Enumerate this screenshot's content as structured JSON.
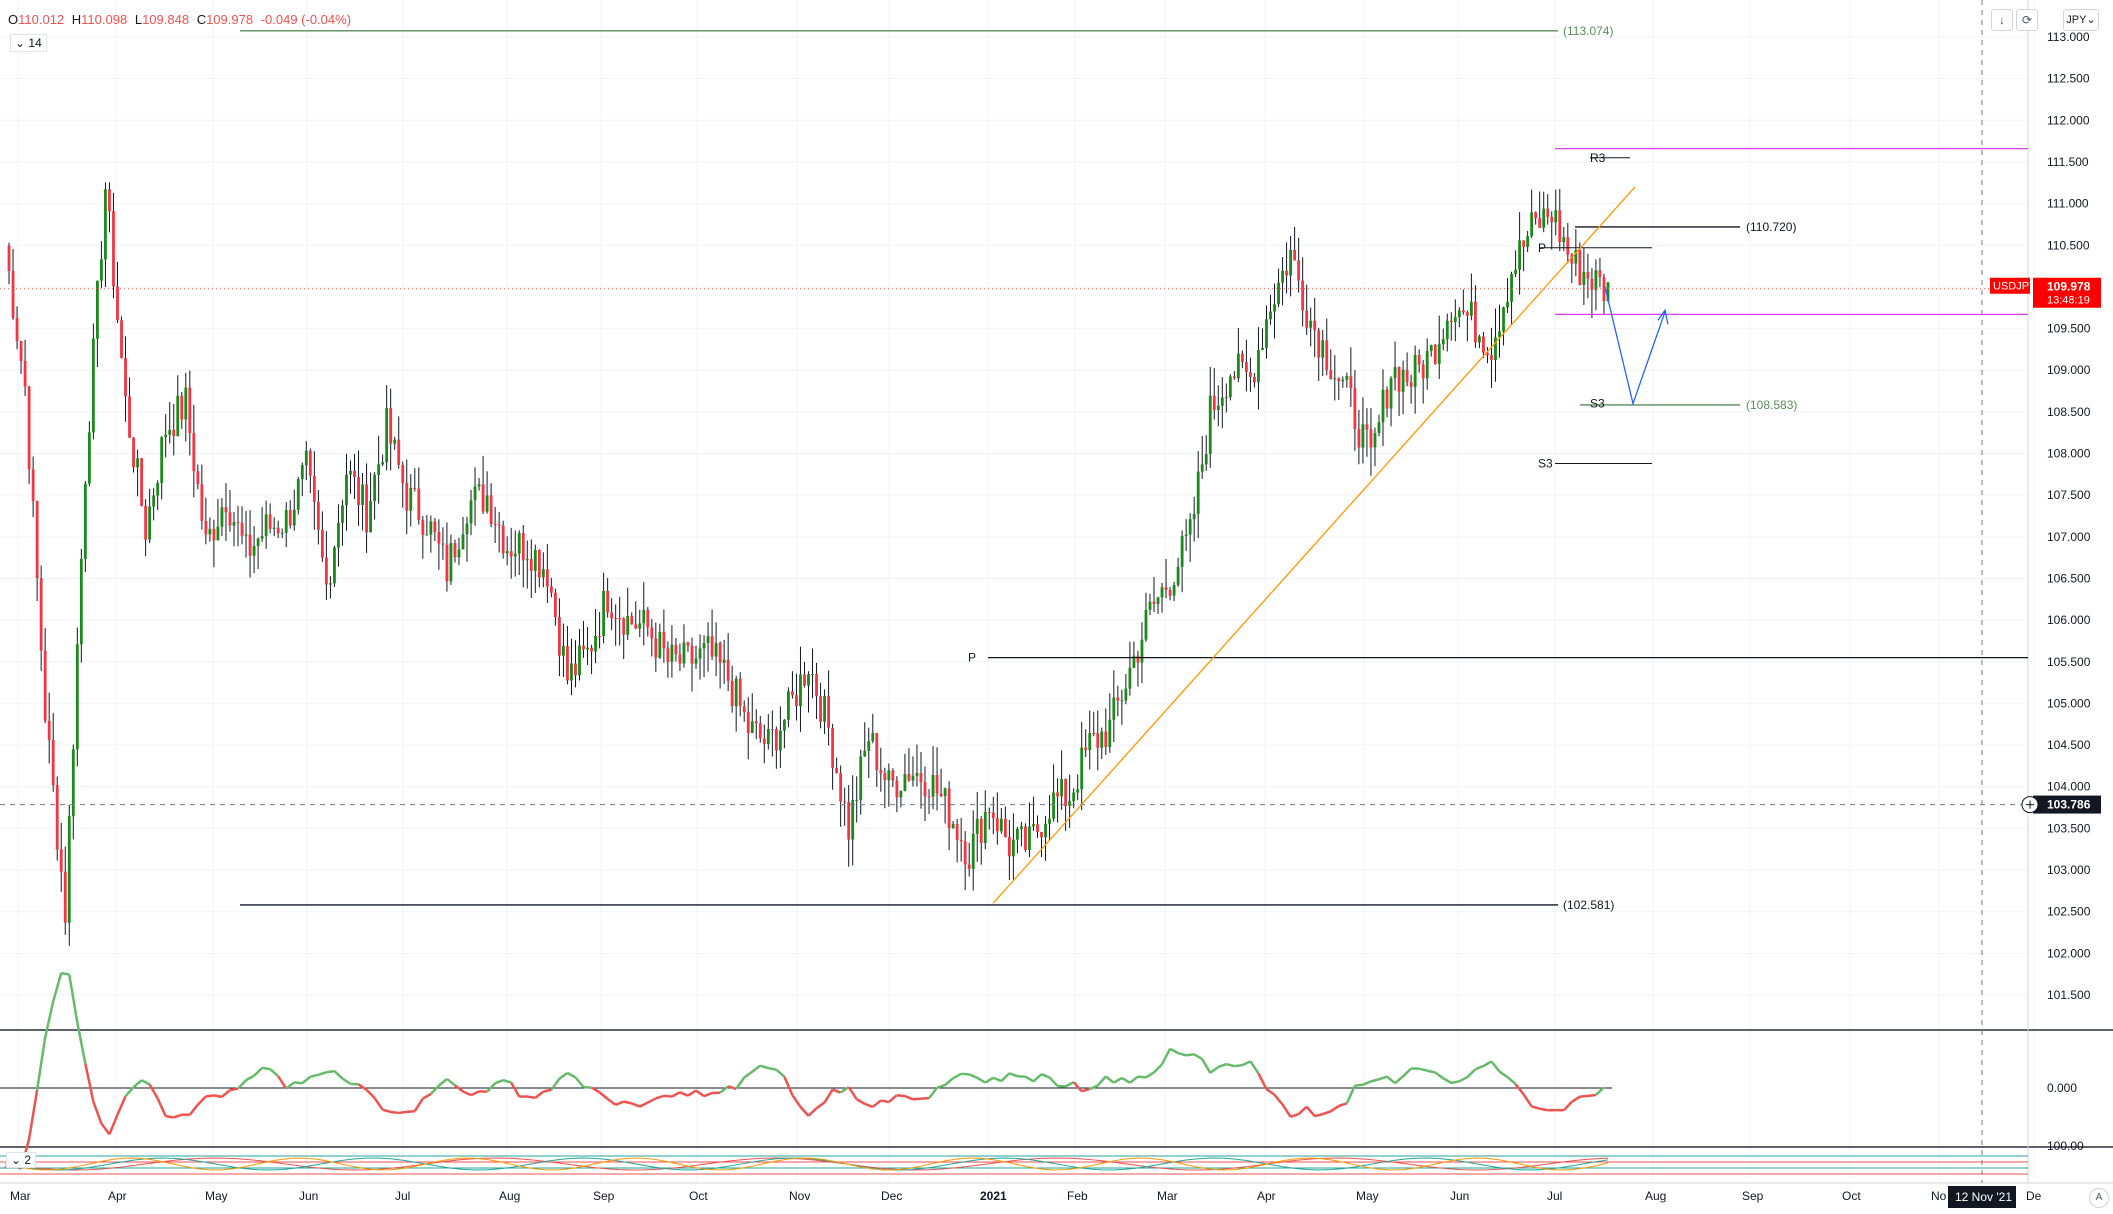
{
  "ohlc": {
    "o_label": "O",
    "o": "110.012",
    "h_label": "H",
    "h": "110.098",
    "l_label": "L",
    "l": "109.848",
    "c_label": "C",
    "c": "109.978",
    "change": "-0.049 (-0.04%)"
  },
  "toolbar": {
    "indicator_length": "14",
    "indicator2_length": "2",
    "currency": "JPY",
    "arrow_down_icon": "arrow-down-icon",
    "refresh_icon": "refresh-icon",
    "auto_scale_label": "A"
  },
  "colors": {
    "up": "#26a69a",
    "candle_up": "#1b8a1b",
    "candle_down": "#f23645",
    "price_badge": "#ff0000",
    "pivot_magenta": "#e040fb",
    "trendline": "#ff9800",
    "arrow": "#2962ff",
    "osc_up": "#66bb6a",
    "osc_down": "#ef5350"
  },
  "chart_data": {
    "type": "candlestick",
    "symbol": "USDJPY",
    "last_price": "109.978",
    "countdown": "13:48:19",
    "crosshair_price": "103.786",
    "crosshair_date": "12 Nov '21",
    "ylim": [
      101.0,
      113.2
    ],
    "price_ticks": [
      "113.000",
      "112.500",
      "112.000",
      "111.500",
      "111.000",
      "110.500",
      "110.000",
      "109.500",
      "109.000",
      "108.500",
      "108.000",
      "107.500",
      "107.000",
      "106.500",
      "106.000",
      "105.500",
      "105.000",
      "104.500",
      "104.000",
      "103.500",
      "103.000",
      "102.500",
      "102.000",
      "101.500"
    ],
    "time_ticks": [
      "Mar",
      "Apr",
      "May",
      "Jun",
      "Jul",
      "Aug",
      "Sep",
      "Oct",
      "Nov",
      "Dec",
      "2021",
      "Feb",
      "Mar",
      "Apr",
      "May",
      "Jun",
      "Jul",
      "Aug",
      "Sep",
      "Oct",
      "No",
      "De"
    ],
    "weekly_closes": [
      110.5,
      108.8,
      104.9,
      102.5,
      107.8,
      111.2,
      108.6,
      107.1,
      108.3,
      108.6,
      106.9,
      107.5,
      106.8,
      107.1,
      107.2,
      107.8,
      106.4,
      107.8,
      107.3,
      108.3,
      107.5,
      107.2,
      106.6,
      107.4,
      107.5,
      106.9,
      106.9,
      106.6,
      105.3,
      105.6,
      106.3,
      106.0,
      105.9,
      105.5,
      105.5,
      105.6,
      105.3,
      104.7,
      104.5,
      104.9,
      105.5,
      104.7,
      103.5,
      104.6,
      104.0,
      104.2,
      104.1,
      103.7,
      103.2,
      103.8,
      103.3,
      103.3,
      103.8,
      103.9,
      104.5,
      104.7,
      105.4,
      106.1,
      106.5,
      107.0,
      108.5,
      109.0,
      108.9,
      109.8,
      110.4,
      109.6,
      109.1,
      108.6,
      107.9,
      109.0,
      108.9,
      109.2,
      109.8,
      109.6,
      109.3,
      110.2,
      110.7,
      110.9,
      110.3,
      110.1,
      109.9
    ],
    "annotations": {
      "hline_113": "(113.074)",
      "hline_102": "(102.581)",
      "hline_110": "(110.720)",
      "hline_108": "(108.583)",
      "pivot_p": "P",
      "pivot_r3": "R3",
      "pivot_s3_a": "S3",
      "pivot_s3_b": "S3",
      "pivot_p2": "P"
    },
    "oscillator1": {
      "zero_label": "0.000"
    },
    "oscillator2": {
      "level_label": "100.00"
    }
  }
}
